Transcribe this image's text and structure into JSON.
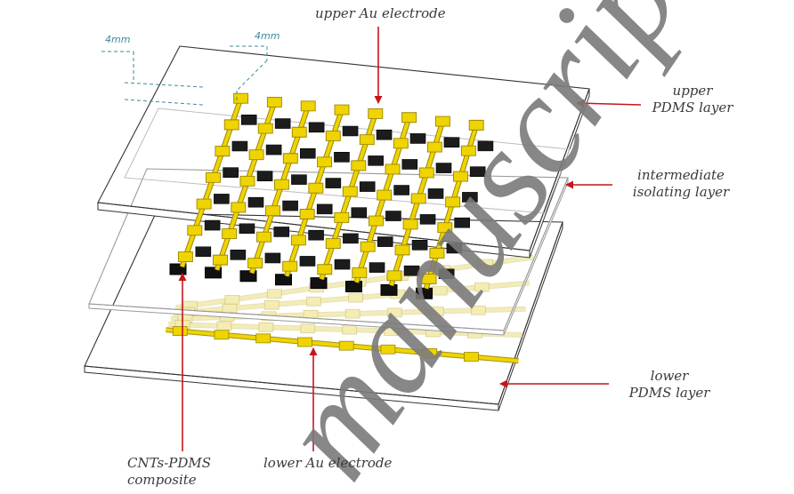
{
  "labels": {
    "upper_electrode": "upper Au electrode",
    "upper_pdms_1": "upper",
    "upper_pdms_2": "PDMS layer",
    "intermediate_1": "intermediate",
    "intermediate_2": "isolating layer",
    "lower_pdms_1": "lower",
    "lower_pdms_2": "PDMS layer",
    "cnts_1": "CNTs-PDMS",
    "cnts_2": "composite",
    "lower_electrode": "lower Au electrode"
  },
  "dimensions": {
    "width_label": "4mm",
    "pitch_label": "4mm"
  },
  "watermark": "manuscript",
  "colors": {
    "gold": "#efd400",
    "gold_edge": "#9a8600",
    "pale_gold": "#f3ecb4",
    "sensor_black": "#111111",
    "arrow": "#c4161c",
    "dim_line": "#3d8a9a",
    "plate_edge": "#333333",
    "watermark": "#7a7a7a"
  }
}
